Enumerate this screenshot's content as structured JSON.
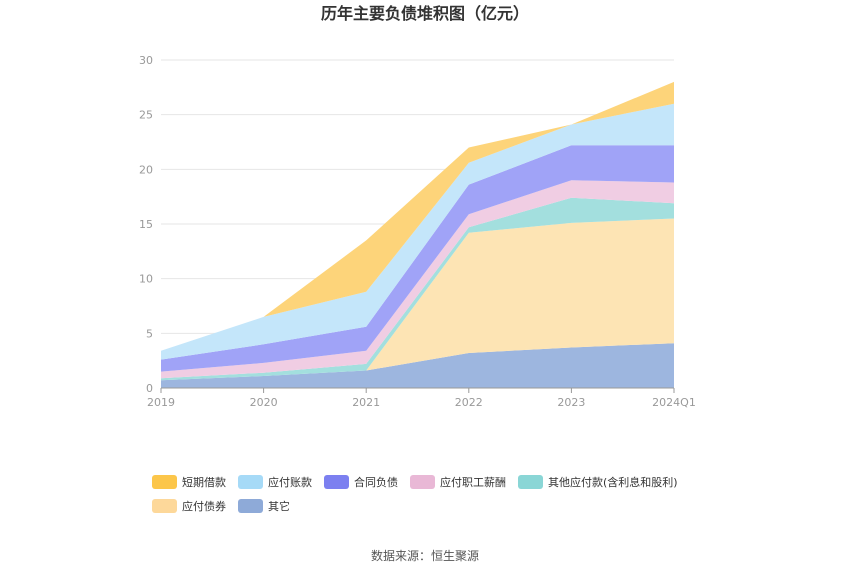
{
  "chart_data": {
    "type": "area",
    "stacked": true,
    "title": "历年主要负债堆积图（亿元）",
    "source": "数据来源：恒生聚源",
    "categories": [
      "2019",
      "2020",
      "2021",
      "2022",
      "2023",
      "2024Q1"
    ],
    "ylim": [
      0,
      30
    ],
    "yticks": [
      0,
      5,
      10,
      15,
      20,
      25,
      30
    ],
    "ytick_labels": [
      "0",
      "5",
      "10",
      "15",
      "20",
      "25",
      "30"
    ],
    "series": [
      {
        "name": "其它",
        "color": "#9db6df",
        "legend_color": "#8eaad8",
        "values": [
          0.7,
          1.1,
          1.6,
          3.2,
          3.7,
          4.1
        ]
      },
      {
        "name": "应付债券",
        "color": "#fde4b4",
        "legend_color": "#fdd89a",
        "values": [
          0.0,
          0.0,
          0.0,
          11.0,
          11.4,
          11.4
        ]
      },
      {
        "name": "其他应付款(含利息和股利)",
        "color": "#a3dfde",
        "legend_color": "#8ad6d6",
        "values": [
          0.2,
          0.3,
          0.6,
          0.5,
          2.3,
          1.4
        ]
      },
      {
        "name": "应付职工薪酬",
        "color": "#f0cde3",
        "legend_color": "#e9b8d6",
        "values": [
          0.6,
          0.9,
          1.2,
          1.2,
          1.6,
          1.9
        ]
      },
      {
        "name": "合同负债",
        "color": "#a0a3f7",
        "legend_color": "#7c80f0",
        "values": [
          1.1,
          1.7,
          2.2,
          2.7,
          3.2,
          3.4
        ]
      },
      {
        "name": "应付账款",
        "color": "#c4e6fa",
        "legend_color": "#a6daf7",
        "values": [
          0.8,
          2.5,
          3.2,
          2.0,
          1.9,
          3.8
        ]
      },
      {
        "name": "短期借款",
        "color": "#fdd47a",
        "legend_color": "#fcc64a",
        "values": [
          0.0,
          0.0,
          4.7,
          1.4,
          0.0,
          2.0
        ]
      }
    ],
    "legend_order": [
      "短期借款",
      "应付账款",
      "合同负债",
      "应付职工薪酬",
      "其他应付款(含利息和股利)",
      "应付债券",
      "其它"
    ],
    "legend_position": "bottom"
  }
}
